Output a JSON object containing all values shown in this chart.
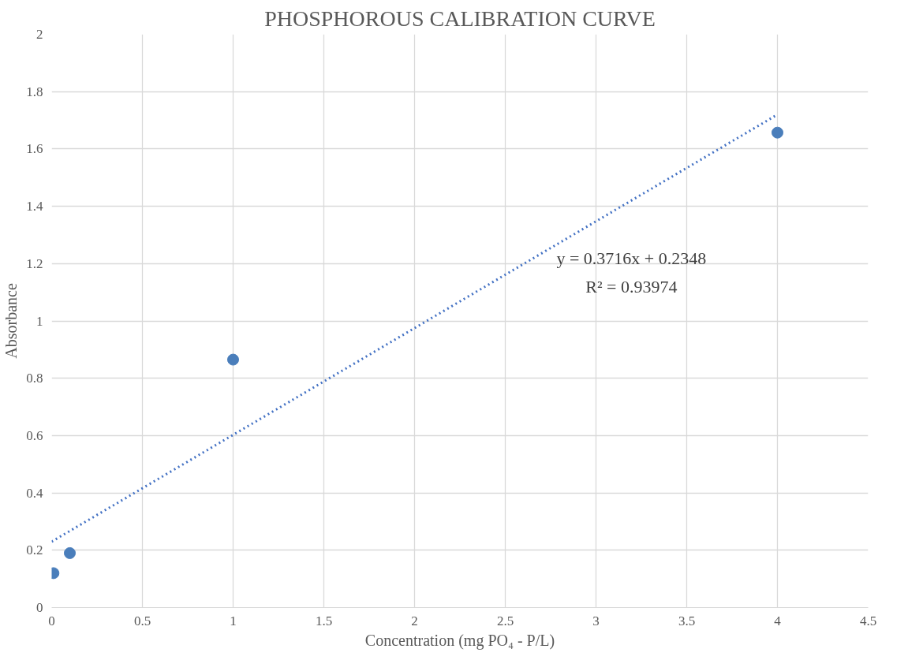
{
  "chart_data": {
    "type": "scatter",
    "title": "PHOSPHOROUS CALIBRATION CURVE",
    "xlabel": "Concentration (mg PO₄ - P/L)",
    "ylabel": "Absorbance",
    "xlim": [
      0,
      4.5
    ],
    "xticks": [
      0,
      0.5,
      1,
      1.5,
      2,
      2.5,
      3,
      3.5,
      4,
      4.5
    ],
    "ylim": [
      0,
      2
    ],
    "yticks": [
      0,
      0.2,
      0.4,
      0.6,
      0.8,
      1,
      1.2,
      1.4,
      1.6,
      1.8,
      2
    ],
    "grid": true,
    "marker": "circle",
    "series": [
      {
        "color": "#4a7ebb",
        "x": [
          0.01,
          0.1,
          1,
          4
        ],
        "values": [
          0.12,
          0.19,
          0.865,
          1.657
        ]
      },
      {
        "type": "line",
        "color": "#4472c4",
        "line_style": "dotted",
        "marker": "none",
        "x": [
          0,
          4
        ],
        "values": [
          0.23,
          1.72
        ]
      }
    ],
    "annotations": [
      "y = 0.3716x + 0.2348",
      "R² = 0.93974"
    ]
  }
}
